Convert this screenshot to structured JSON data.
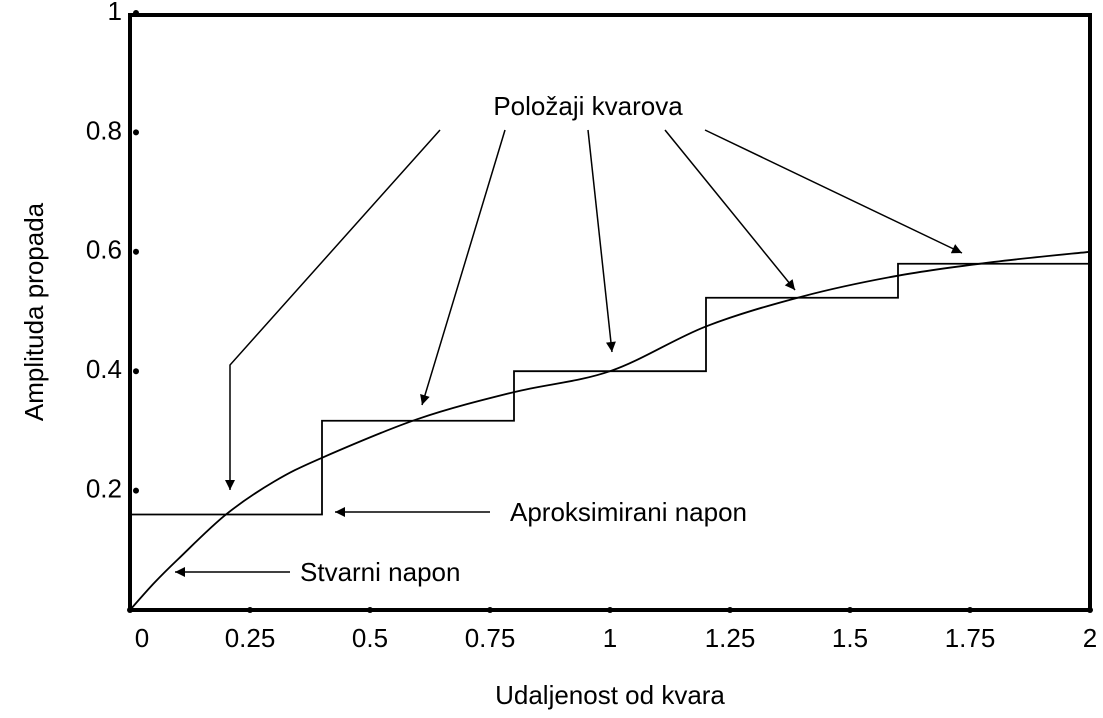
{
  "chart_data": {
    "type": "line",
    "x_label": "Udaljenost od kvara",
    "y_label": "Amplituda propada",
    "xlim": [
      0,
      2
    ],
    "xticks": [
      0,
      0.25,
      0.5,
      0.75,
      1,
      1.25,
      1.5,
      1.75,
      2
    ],
    "ylim": [
      0,
      1
    ],
    "yticks": [
      0.2,
      0.4,
      0.6,
      0.8,
      1
    ],
    "series": [
      {
        "name": "Stvarni napon",
        "color": "#000000",
        "drawstyle": "smooth",
        "x": [
          0,
          0.05,
          0.1,
          0.2,
          0.3,
          0.4,
          0.6,
          0.8,
          1.0,
          1.2,
          1.4,
          1.6,
          1.8,
          2.0
        ],
        "values": [
          0,
          0.045,
          0.085,
          0.16,
          0.215,
          0.255,
          0.32,
          0.365,
          0.4,
          0.475,
          0.525,
          0.56,
          0.583,
          0.6
        ]
      },
      {
        "name": "Aproksimirani napon",
        "color": "#000000",
        "drawstyle": "steps-post",
        "x": [
          0,
          0.4,
          0.8,
          1.2,
          1.6,
          2.0
        ],
        "values": [
          0.16,
          0.317,
          0.4,
          0.523,
          0.58,
          0.58
        ]
      }
    ],
    "annotations": [
      "Položaji kvarova"
    ]
  }
}
